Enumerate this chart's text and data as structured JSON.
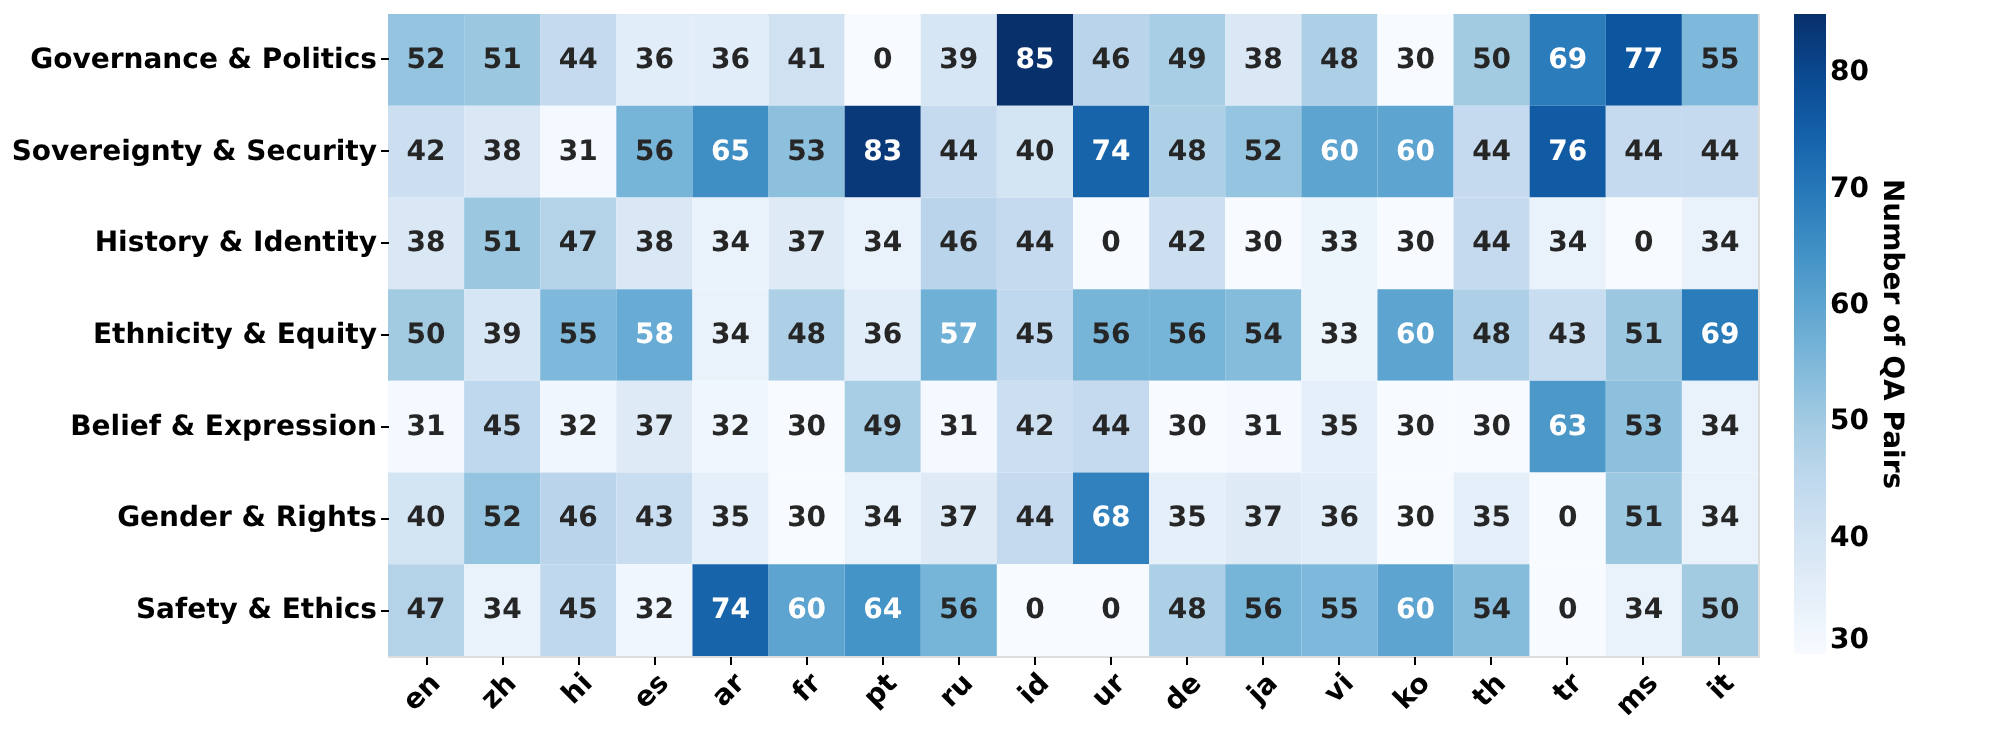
{
  "chart_data": {
    "type": "heatmap",
    "categories": [
      "en",
      "zh",
      "hi",
      "es",
      "ar",
      "fr",
      "pt",
      "ru",
      "id",
      "ur",
      "de",
      "ja",
      "vi",
      "ko",
      "th",
      "tr",
      "ms",
      "it"
    ],
    "y_categories": [
      "Governance & Politics",
      "Sovereignty & Security",
      "History & Identity",
      "Ethnicity & Equity",
      "Belief & Expression",
      "Gender & Rights",
      "Safety & Ethics"
    ],
    "cells": [
      [
        52,
        51,
        44,
        36,
        36,
        41,
        0,
        39,
        85,
        46,
        49,
        38,
        48,
        30,
        50,
        69,
        77,
        55
      ],
      [
        42,
        38,
        31,
        56,
        65,
        53,
        83,
        44,
        40,
        74,
        48,
        52,
        60,
        60,
        44,
        76,
        44,
        44
      ],
      [
        38,
        51,
        47,
        38,
        34,
        37,
        34,
        46,
        44,
        0,
        42,
        30,
        33,
        30,
        44,
        34,
        0,
        34
      ],
      [
        50,
        39,
        55,
        58,
        34,
        48,
        36,
        57,
        45,
        56,
        56,
        54,
        33,
        60,
        48,
        43,
        51,
        69
      ],
      [
        31,
        45,
        32,
        37,
        32,
        30,
        49,
        31,
        42,
        44,
        30,
        31,
        35,
        30,
        30,
        63,
        53,
        34
      ],
      [
        40,
        52,
        46,
        43,
        35,
        30,
        34,
        37,
        44,
        68,
        35,
        37,
        36,
        30,
        35,
        0,
        51,
        34
      ],
      [
        47,
        34,
        45,
        32,
        74,
        60,
        64,
        56,
        0,
        0,
        48,
        56,
        55,
        60,
        54,
        0,
        34,
        50
      ]
    ],
    "clabel": "Number of QA Pairs",
    "clim": [
      30,
      85
    ],
    "cticks": [
      30,
      40,
      50,
      60,
      70,
      80
    ],
    "data_labels": true
  }
}
